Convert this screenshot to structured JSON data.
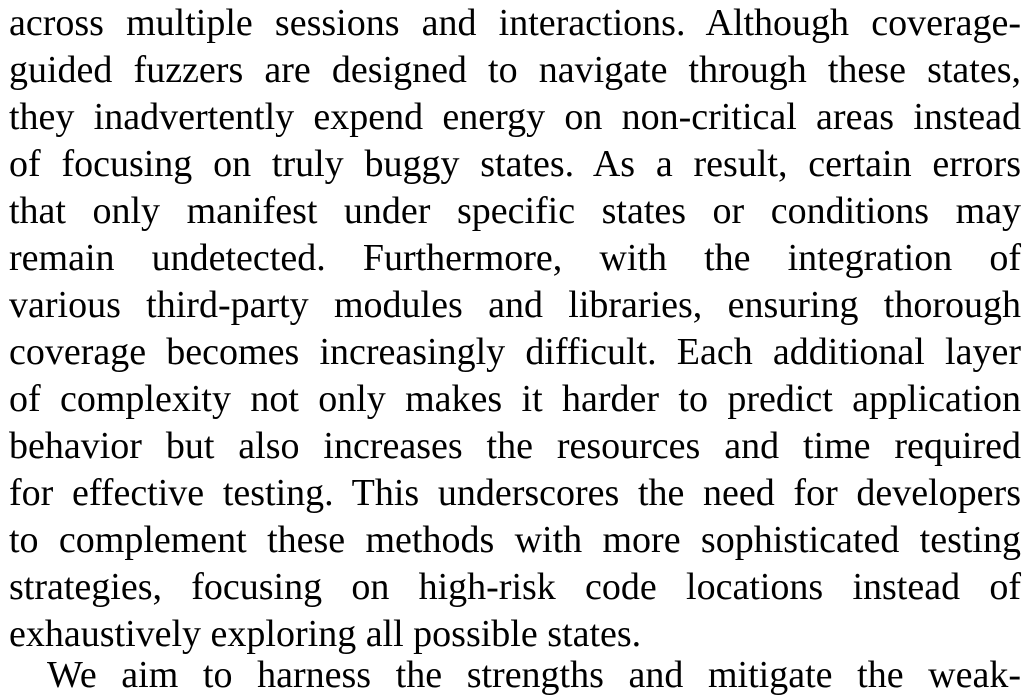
{
  "paragraph": {
    "lines": [
      "across multiple sessions and interactions. Although coverage-",
      "guided fuzzers are designed to navigate through these states,",
      "they inadvertently expend energy on non-critical areas instead",
      "of focusing on truly buggy states. As a result, certain errors",
      "that only manifest under specific states or conditions may",
      "remain undetected. Furthermore, with the integration of",
      "various third-party modules and libraries, ensuring thorough",
      "coverage becomes increasingly difficult. Each additional layer",
      "of complexity not only makes it harder to predict application",
      "behavior but also increases the resources and time required",
      "for effective testing. This underscores the need for developers",
      "to complement these methods with more sophisticated testing",
      "strategies, focusing on high-risk code locations instead of",
      "exhaustively exploring all possible states."
    ]
  },
  "next_paragraph": {
    "first_line": "We aim to harness the strengths and mitigate the weak-"
  }
}
